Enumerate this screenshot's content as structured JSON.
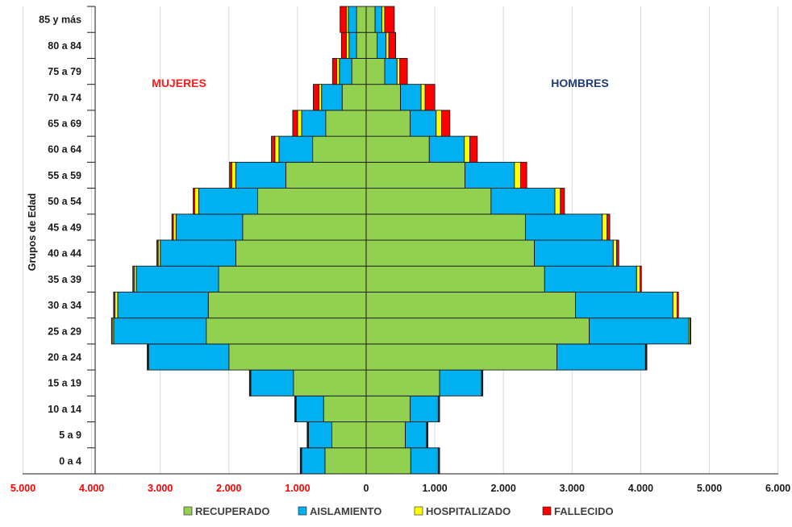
{
  "chart_data": {
    "type": "bar",
    "subtype": "population-pyramid",
    "orientation": "horizontal",
    "stacked": true,
    "ylabel": "Grupos de Edad",
    "annotations": {
      "left": "MUJERES",
      "right": "HOMBRES"
    },
    "colors": {
      "left_annotation": "#ff1a1a",
      "right_annotation": "#1f3a7a",
      "negative_tick": "#ff0000",
      "positive_tick": "#1a1a1a"
    },
    "categories": [
      "0 a 4",
      "5 a 9",
      "10 a 14",
      "15 a 19",
      "20 a 24",
      "25 a 29",
      "30 a 34",
      "35 a 39",
      "40 a 44",
      "45 a 49",
      "50 a 54",
      "55 a 59",
      "60 a 64",
      "65 a 69",
      "70 a 74",
      "75 a 79",
      "80 a 84",
      "85 y más"
    ],
    "xlim": [
      -5000,
      6000
    ],
    "x_ticks": [
      -5000,
      -4000,
      -3000,
      -2000,
      -1000,
      0,
      1000,
      2000,
      3000,
      4000,
      5000,
      6000
    ],
    "x_tick_labels": [
      "5.000",
      "4.000",
      "3.000",
      "2.000",
      "1.000",
      "0",
      "1.000",
      "2.000",
      "3.000",
      "4.000",
      "5.000",
      "6.000"
    ],
    "grid": "vertical",
    "legend_position": "bottom",
    "series": [
      {
        "name": "RECUPERADO",
        "color": "#92d050",
        "mujeres": [
          600,
          500,
          620,
          1060,
          2000,
          2330,
          2300,
          2150,
          1900,
          1800,
          1580,
          1170,
          780,
          590,
          350,
          210,
          140,
          140
        ],
        "hombres": [
          650,
          570,
          640,
          1070,
          2780,
          3250,
          3050,
          2600,
          2450,
          2320,
          1820,
          1440,
          920,
          640,
          500,
          270,
          160,
          130
        ]
      },
      {
        "name": "AISLAMIENTO",
        "color": "#00b0f0",
        "mujeres": [
          340,
          340,
          400,
          620,
          1170,
          1350,
          1320,
          1200,
          1100,
          970,
          860,
          730,
          490,
          350,
          300,
          180,
          110,
          120
        ],
        "hombres": [
          400,
          310,
          410,
          610,
          1290,
          1450,
          1420,
          1340,
          1150,
          1120,
          930,
          720,
          510,
          380,
          300,
          180,
          130,
          100
        ]
      },
      {
        "name": "HOSPITALIZADO",
        "color": "#ffff00",
        "mujeres": [
          10,
          10,
          10,
          10,
          10,
          20,
          40,
          30,
          30,
          40,
          60,
          60,
          60,
          60,
          40,
          40,
          40,
          30
        ],
        "hombres": [
          10,
          10,
          10,
          10,
          10,
          20,
          60,
          50,
          50,
          70,
          80,
          90,
          80,
          80,
          60,
          40,
          40,
          40
        ]
      },
      {
        "name": "FALLECIDO",
        "color": "#ff0000",
        "mujeres": [
          10,
          10,
          10,
          10,
          10,
          10,
          20,
          20,
          20,
          20,
          20,
          30,
          50,
          70,
          80,
          60,
          70,
          90
        ],
        "hombres": [
          10,
          10,
          10,
          10,
          10,
          10,
          20,
          20,
          30,
          40,
          60,
          90,
          110,
          120,
          140,
          110,
          100,
          140
        ]
      }
    ]
  }
}
